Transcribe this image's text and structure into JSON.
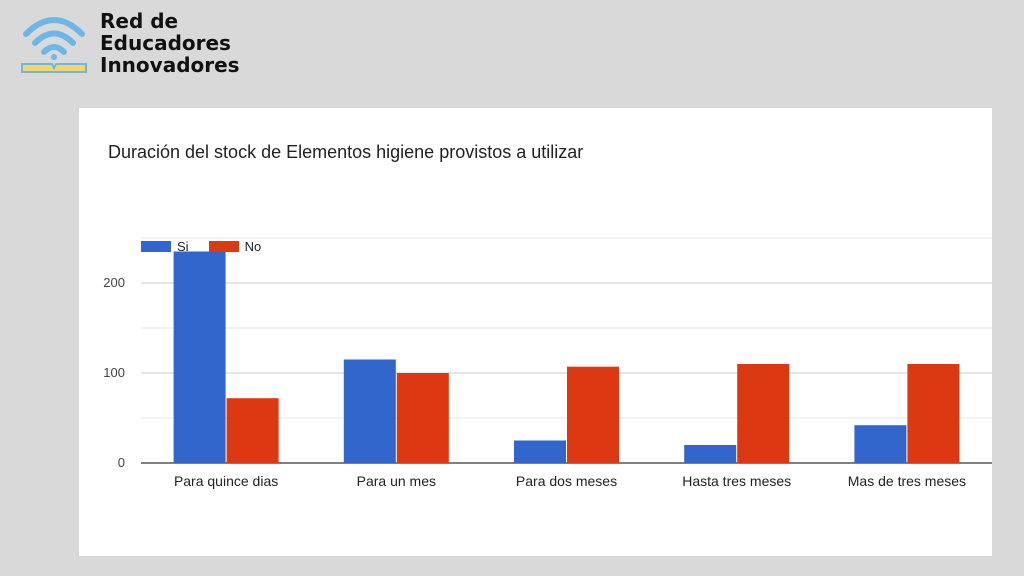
{
  "logo": {
    "line1": "Red de",
    "line2": "Educadores",
    "line3": "Innovadores",
    "icon": "wifi-book-icon",
    "colors": {
      "wave": "#6fb6e8",
      "book": "#f2d56b"
    }
  },
  "chart_data": {
    "type": "bar",
    "title": "Duración del stock de Elementos higiene provistos a utilizar",
    "categories": [
      "Para quince dias",
      "Para un mes",
      "Para dos meses",
      "Hasta tres meses",
      "Mas de tres meses"
    ],
    "series": [
      {
        "name": "Si",
        "color": "#3366cc",
        "values": [
          235,
          115,
          25,
          20,
          42
        ]
      },
      {
        "name": "No",
        "color": "#dc3912",
        "values": [
          72,
          100,
          107,
          110,
          110
        ]
      }
    ],
    "yticks": [
      0,
      100,
      200
    ],
    "ylim": [
      0,
      250
    ],
    "grid": true,
    "legend": "top-left",
    "xlabel": "",
    "ylabel": ""
  }
}
